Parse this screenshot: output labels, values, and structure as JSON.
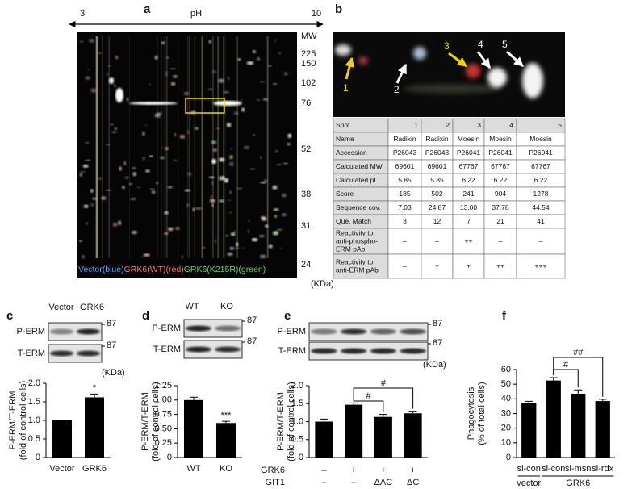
{
  "panel_a": {
    "label": "a",
    "ph_axis": {
      "low": "3",
      "title": "pH",
      "high": "10"
    },
    "mw_title": "MW",
    "mw_markers": [
      "225",
      "150",
      "102",
      "76",
      "52",
      "38",
      "31",
      "24"
    ],
    "unit": "(KDa)",
    "legend": [
      {
        "text": "Vector(blue)",
        "color": "#4fa3ff"
      },
      {
        "text": "GRK6(WT)(red)",
        "color": "#ff6f6f"
      },
      {
        "text": "GRK6(K215R)(green)",
        "color": "#62d562"
      }
    ]
  },
  "panel_b": {
    "label": "b",
    "spots": [
      "1",
      "2",
      "3",
      "4",
      "5"
    ],
    "table": {
      "rows": [
        [
          "Spot",
          "1",
          "2",
          "3",
          "4",
          "5"
        ],
        [
          "Name",
          "Radixin",
          "Radixin",
          "Moesin",
          "Moesin",
          "Moesin"
        ],
        [
          "Accession",
          "P26043",
          "P26043",
          "P26041",
          "P26041",
          "P26041"
        ],
        [
          "Calculated MW",
          "69601",
          "69601",
          "67767",
          "67767",
          "67767"
        ],
        [
          "Calculated pI",
          "5.85",
          "5.85",
          "6.22",
          "6.22",
          "6.22"
        ],
        [
          "Score",
          "185",
          "502",
          "241",
          "904",
          "1278"
        ],
        [
          "Sequence cov.",
          "7.03",
          "24.87",
          "13.00",
          "37.78",
          "44.54"
        ],
        [
          "Que. Match",
          "3",
          "12",
          "7",
          "21",
          "41"
        ],
        [
          [
            "Reactivity to",
            "anti-phospho-",
            "ERM pAb"
          ],
          "–",
          "–",
          "++",
          "–",
          "–"
        ],
        [
          [
            "Reactivity to",
            "anti-ERM pAb"
          ],
          "–",
          "+",
          "+",
          "++",
          "+++"
        ]
      ]
    }
  },
  "blots": [
    {
      "columns": [
        "Vector",
        "GRK6"
      ],
      "rows": [
        "P-ERM",
        "T-ERM"
      ],
      "markers": [
        "87",
        "87"
      ],
      "unit": "(KDa)"
    },
    {
      "columns": [
        "WT",
        "KO"
      ],
      "rows": [
        "P-ERM",
        "T-ERM"
      ],
      "markers": [
        "87",
        "87"
      ]
    },
    {
      "rows": [
        "P-ERM",
        "T-ERM"
      ],
      "markers": [
        "87",
        "87"
      ],
      "unit": "(KDa)"
    }
  ],
  "chart_data": [
    {
      "type": "bar",
      "label": "c",
      "ylabel": [
        "P-ERM/T-ERM",
        "(fold of control cells)"
      ],
      "categories": [
        "Vector",
        "GRK6"
      ],
      "values": [
        1.0,
        1.62
      ],
      "errors": [
        0,
        0.09
      ],
      "annotations": [
        null,
        "*"
      ],
      "color": "#000000",
      "ylim": [
        0,
        2.0
      ],
      "yticks": [
        0,
        0.5,
        {
          "value": 1,
          "label": "1.0"
        },
        1.5,
        {
          "value": 2,
          "label": "2.0"
        }
      ]
    },
    {
      "type": "bar",
      "label": "d",
      "ylabel": [
        "P-ERM/T-ERM",
        "(fold of control cells)"
      ],
      "categories": [
        "WT",
        "KO"
      ],
      "values": [
        1.0,
        0.6
      ],
      "errors": [
        0.05,
        0.03
      ],
      "annotations": [
        null,
        "***"
      ],
      "color": "#000000",
      "ylim": [
        0,
        1.25
      ],
      "yticks": [
        0,
        0.25,
        {
          "value": 0.5,
          "label": "0.50"
        },
        0.75,
        {
          "value": 1,
          "label": "1.00"
        },
        1.25
      ]
    },
    {
      "type": "bar",
      "label": "e",
      "ylabel": [
        "P-ERM/T-ERM",
        "(fold of control cells)"
      ],
      "categories": [
        null,
        null,
        null,
        null
      ],
      "values": [
        1.0,
        1.47,
        1.13,
        1.23
      ],
      "errors": [
        0.07,
        0.05,
        0.07,
        0.06
      ],
      "treatments": [
        {
          "name": "GRK6",
          "labels": [
            "–",
            "+",
            "+",
            "+"
          ]
        },
        {
          "name": "GIT1",
          "labels": [
            "–",
            "–",
            "ΔAC",
            "ΔC"
          ]
        }
      ],
      "brackets": [
        "#",
        "#"
      ],
      "color": "#000000",
      "ylim": [
        0,
        2.0
      ],
      "yticks": [
        0,
        0.5,
        {
          "value": 1,
          "label": "1.0"
        },
        1.5,
        {
          "value": 2,
          "label": "2.0"
        }
      ]
    },
    {
      "type": "bar",
      "label": "f",
      "ylabel": [
        "Phagocytosis",
        "(% of total cells)"
      ],
      "categories": [
        "si-con",
        "si-con",
        "si-msn",
        "si-rdx"
      ],
      "values": [
        37,
        52.5,
        43.5,
        38.5
      ],
      "errors": [
        1.3,
        2,
        2.6,
        1.2
      ],
      "groups": [
        "vector",
        "GRK6"
      ],
      "brackets": [
        "#",
        "##"
      ],
      "color": "#000000",
      "ylim": [
        0,
        60
      ],
      "yticks": [
        0,
        10,
        20,
        30,
        40,
        50,
        60
      ]
    }
  ]
}
